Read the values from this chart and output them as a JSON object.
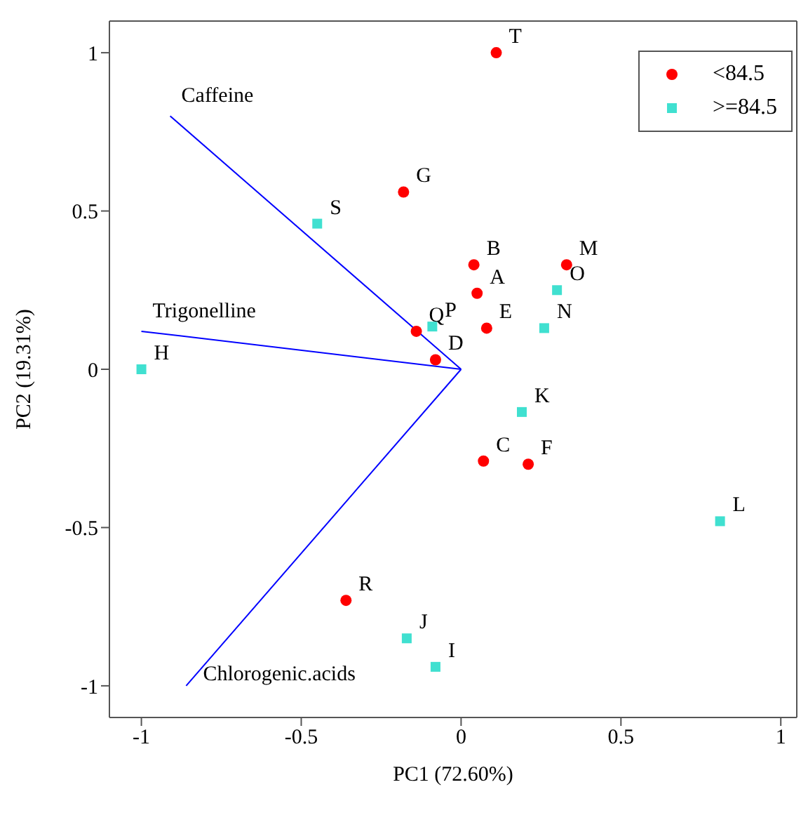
{
  "chart_data": {
    "type": "scatter",
    "xlabel": "PC1 (72.60%)",
    "ylabel": "PC2 (19.31%)",
    "xlim": [
      -1.1,
      1.05
    ],
    "ylim": [
      -1.1,
      1.1
    ],
    "xticks": [
      -1,
      -0.5,
      0,
      0.5,
      1
    ],
    "yticks": [
      -1,
      -0.5,
      0,
      0.5,
      1
    ],
    "legend": "top right",
    "series": [
      {
        "name": "<84.5",
        "color": "#ff0000",
        "marker": "circle",
        "x": [
          0.11,
          -0.18,
          0.04,
          0.33,
          0.05,
          -0.14,
          0.08,
          -0.08,
          0.07,
          0.21,
          -0.36
        ],
        "values": [
          1.0,
          0.56,
          0.33,
          0.33,
          0.24,
          0.12,
          0.13,
          0.03,
          -0.29,
          -0.3,
          -0.73
        ],
        "value_labels": [
          "T",
          "G",
          "B",
          "M",
          "A",
          "Q",
          "E",
          "D",
          "C",
          "F",
          "R"
        ]
      },
      {
        "name": ">=84.5",
        "color": "#40e0d0",
        "marker": "square",
        "x": [
          -0.45,
          0.3,
          -0.09,
          0.26,
          -1.0,
          0.19,
          0.81,
          -0.17,
          -0.08
        ],
        "values": [
          0.46,
          0.25,
          0.135,
          0.13,
          0.0,
          -0.135,
          -0.48,
          -0.85,
          -0.94
        ],
        "value_labels": [
          "S",
          "O",
          "P",
          "N",
          "H",
          "K",
          "L",
          "J",
          "I"
        ]
      },
      {
        "type": "line",
        "color": "#0000ff",
        "marker": "none",
        "x": [
          0,
          -0.91
        ],
        "values": [
          0,
          0.8
        ]
      },
      {
        "type": "line",
        "color": "#0000ff",
        "marker": "none",
        "x": [
          0,
          -1.0
        ],
        "values": [
          0,
          0.12
        ]
      },
      {
        "type": "line",
        "color": "#0000ff",
        "marker": "none",
        "x": [
          0,
          -0.86
        ],
        "values": [
          0,
          -1.0
        ]
      }
    ],
    "annotations": [
      {
        "text": "Caffeine",
        "x": -0.91,
        "y": 0.8
      },
      {
        "text": "Trigonelline",
        "x": -1.0,
        "y": 0.12
      },
      {
        "text": "Chlorogenic.acids",
        "x": -0.86,
        "y": -1.0
      }
    ]
  }
}
